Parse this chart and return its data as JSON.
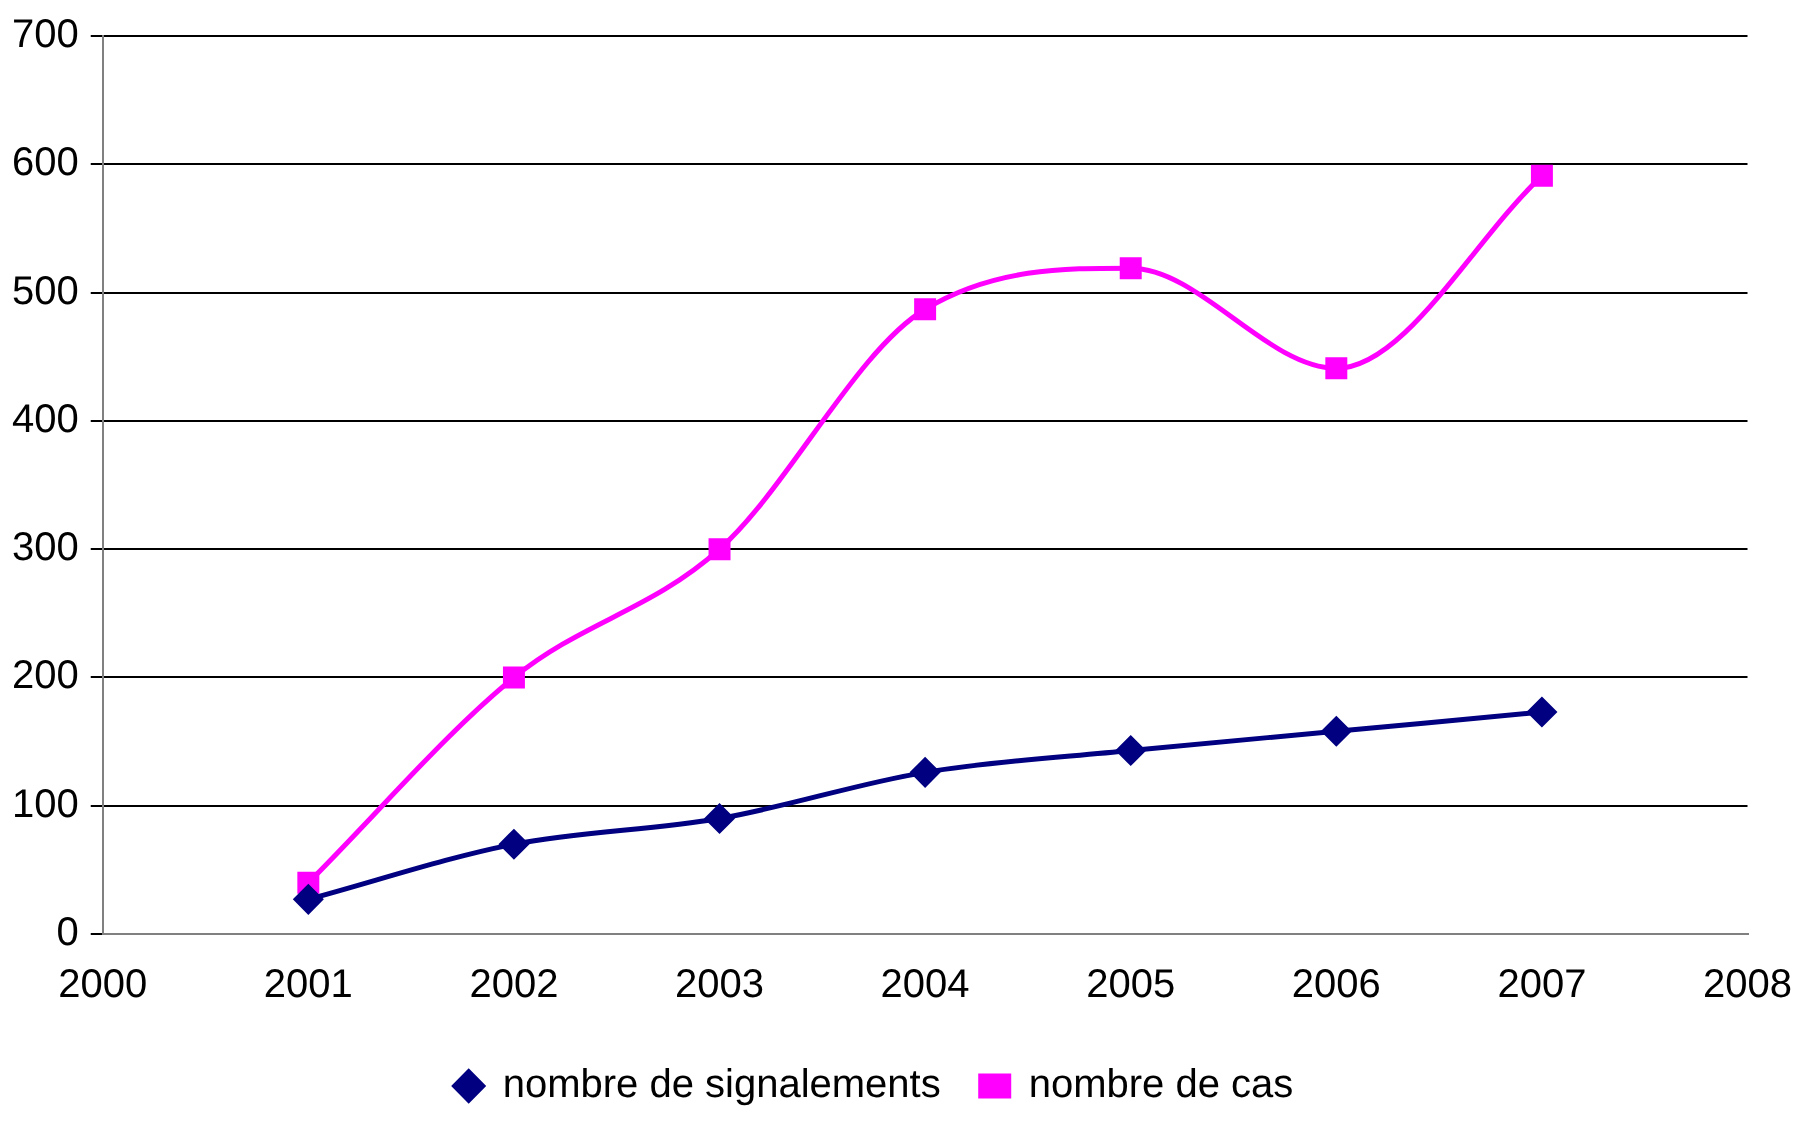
{
  "chart_data": {
    "type": "line",
    "x": [
      2001,
      2002,
      2003,
      2004,
      2005,
      2006,
      2007
    ],
    "series": [
      {
        "name": "nombre de signalements",
        "color": "#000080",
        "marker": "diamond",
        "values": [
          27,
          70,
          90,
          126,
          143,
          158,
          173
        ]
      },
      {
        "name": "nombre de cas",
        "color": "#ff00ff",
        "marker": "square",
        "values": [
          40,
          200,
          300,
          487,
          519,
          441,
          591
        ]
      }
    ],
    "xlim": [
      2000,
      2008
    ],
    "xticks": [
      2000,
      2001,
      2002,
      2003,
      2004,
      2005,
      2006,
      2007,
      2008
    ],
    "ylim": [
      0,
      700
    ],
    "yticks": [
      0,
      100,
      200,
      300,
      400,
      500,
      600,
      700
    ],
    "grid": "y",
    "legend": "bottom",
    "line_style": "solid"
  }
}
